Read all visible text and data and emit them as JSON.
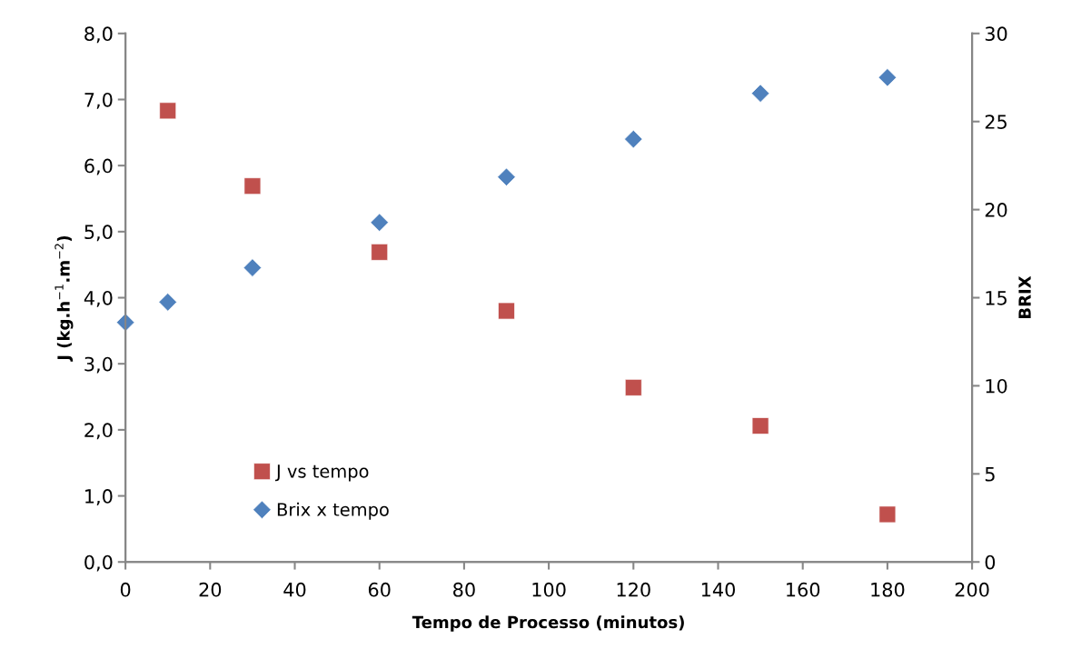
{
  "chart_data": {
    "type": "scatter",
    "xlabel": "Tempo de Processo (minutos)",
    "ylabel": "J (kg.h$^{−1}$.m$^{−2}$)",
    "y2label": "BRIX",
    "xlim": [
      0,
      200
    ],
    "xticks": [
      0,
      20,
      40,
      60,
      80,
      100,
      120,
      140,
      160,
      180,
      200
    ],
    "ylim": [
      0,
      8
    ],
    "yticks": [
      {
        "value": 0,
        "label": "0,0"
      },
      {
        "value": 1,
        "label": "1,0"
      },
      {
        "value": 2,
        "label": "2,0"
      },
      {
        "value": 3,
        "label": "3,0"
      },
      {
        "value": 4,
        "label": "4,0"
      },
      {
        "value": 5,
        "label": "5,0"
      },
      {
        "value": 6,
        "label": "6,0"
      },
      {
        "value": 7,
        "label": "7,0"
      },
      {
        "value": 8,
        "label": "8,0"
      }
    ],
    "y2lim": [
      0,
      30
    ],
    "y2ticks": [
      0,
      5,
      10,
      15,
      20,
      25,
      30
    ],
    "grid": false,
    "legend": "bottom left",
    "series": [
      {
        "name": "J vs tempo",
        "color": "#c0504d",
        "marker": "square",
        "x": [
          10,
          30,
          60,
          90,
          120,
          150,
          180
        ],
        "values": [
          6.83,
          5.69,
          4.69,
          3.8,
          2.64,
          2.06,
          0.72
        ]
      },
      {
        "name": "Brix x tempo",
        "color": "#4f81bd",
        "marker": "diamond",
        "axis": "y2",
        "x": [
          0,
          10,
          30,
          60,
          90,
          120,
          150,
          180
        ],
        "values": [
          13.6,
          14.75,
          16.7,
          19.27,
          21.85,
          24.0,
          26.6,
          27.5
        ]
      }
    ]
  }
}
